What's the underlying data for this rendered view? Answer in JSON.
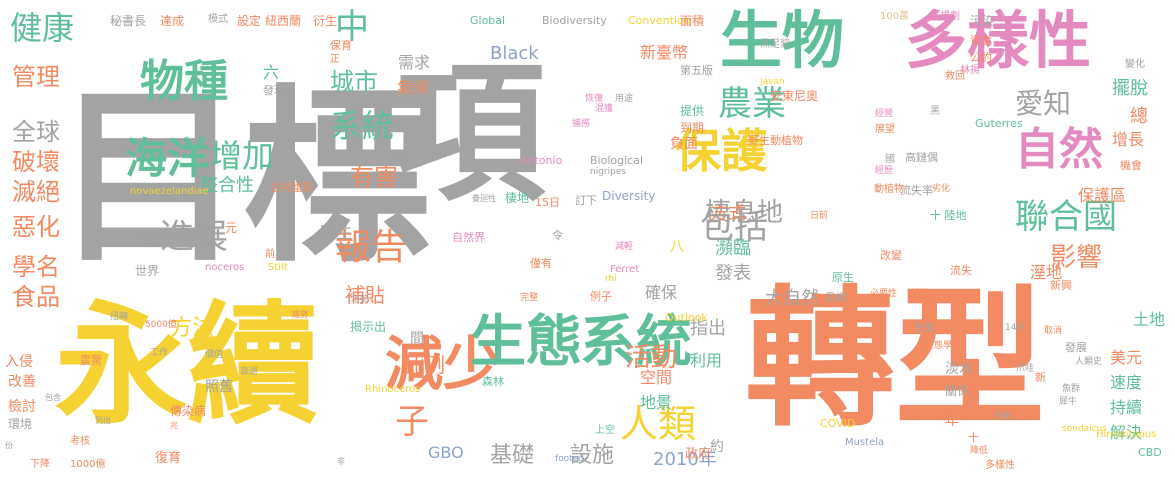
{
  "palette": {
    "gray": "#a3a3a3",
    "orange": "#f28a62",
    "green": "#5fbf9b",
    "pink": "#e58ac0",
    "yellow": "#f5d232",
    "blue": "#8ea3cc",
    "lime": "#a8d448",
    "tan": "#e3c28c"
  },
  "words": [
    {
      "text": "目標",
      "color": "gray",
      "size": 188
    },
    {
      "text": "項",
      "color": "gray",
      "size": 150
    },
    {
      "text": "轉型",
      "color": "orange",
      "size": 150
    },
    {
      "text": "永續",
      "color": "yellow",
      "size": 132
    },
    {
      "text": "多樣性",
      "color": "pink",
      "size": 62
    },
    {
      "text": "生物",
      "color": "green",
      "size": 62
    },
    {
      "text": "減少",
      "color": "orange",
      "size": 58
    },
    {
      "text": "生態",
      "color": "green",
      "size": 56
    },
    {
      "text": "系統",
      "color": "green",
      "size": 56
    },
    {
      "text": "物種",
      "color": "green",
      "size": 44
    },
    {
      "text": "海洋",
      "color": "green",
      "size": 42
    },
    {
      "text": "保護",
      "color": "yellow",
      "size": 46
    },
    {
      "text": "自然",
      "color": "pink",
      "size": 44
    },
    {
      "text": "報告",
      "color": "orange",
      "size": 36
    },
    {
      "text": "人類",
      "color": "yellow",
      "size": 38
    },
    {
      "text": "增加",
      "color": "green",
      "size": 32
    },
    {
      "text": "進展",
      "color": "gray",
      "size": 34
    },
    {
      "text": "聯合國",
      "color": "green",
      "size": 34
    },
    {
      "text": "農業",
      "color": "green",
      "size": 34
    },
    {
      "text": "系統",
      "color": "green",
      "size": 32
    },
    {
      "text": "包括",
      "color": "gray",
      "size": 34
    },
    {
      "text": "健康",
      "color": "green",
      "size": 32
    },
    {
      "text": "中",
      "color": "green",
      "size": 34
    },
    {
      "text": "子",
      "color": "orange",
      "size": 34
    },
    {
      "text": "愛知",
      "color": "gray",
      "size": 28
    },
    {
      "text": "影響",
      "color": "orange",
      "size": 26
    },
    {
      "text": "活動",
      "color": "orange",
      "size": 26
    },
    {
      "text": "棲息地",
      "color": "gray",
      "size": 26
    },
    {
      "text": "有害",
      "color": "orange",
      "size": 24
    },
    {
      "text": "城市",
      "color": "green",
      "size": 24
    },
    {
      "text": "管理",
      "color": "orange",
      "size": 24
    },
    {
      "text": "全球",
      "color": "gray",
      "size": 24
    },
    {
      "text": "破壞",
      "color": "orange",
      "size": 24
    },
    {
      "text": "滅絕",
      "color": "orange",
      "size": 24
    },
    {
      "text": "惡化",
      "color": "orange",
      "size": 24
    },
    {
      "text": "學名",
      "color": "orange",
      "size": 24
    },
    {
      "text": "食品",
      "color": "orange",
      "size": 24
    },
    {
      "text": "基礎",
      "color": "gray",
      "size": 22
    },
    {
      "text": "設施",
      "color": "gray",
      "size": 22
    },
    {
      "text": "2010年",
      "color": "blue",
      "size": 18
    },
    {
      "text": "方法",
      "color": "yellow",
      "size": 22
    },
    {
      "text": "補貼",
      "color": "orange",
      "size": 20
    },
    {
      "text": "比例",
      "color": "orange",
      "size": 20
    },
    {
      "text": "大自然",
      "color": "gray",
      "size": 18
    },
    {
      "text": "發表",
      "color": "gray",
      "size": 18
    },
    {
      "text": "瀕臨",
      "color": "green",
      "size": 18
    },
    {
      "text": "方式",
      "color": "orange",
      "size": 18
    },
    {
      "text": "整合性",
      "color": "green",
      "size": 18
    },
    {
      "text": "指出",
      "color": "gray",
      "size": 18
    },
    {
      "text": "利用",
      "color": "green",
      "size": 16
    },
    {
      "text": "空間",
      "color": "orange",
      "size": 16
    },
    {
      "text": "地景",
      "color": "green",
      "size": 16
    },
    {
      "text": "確保",
      "color": "gray",
      "size": 16
    },
    {
      "text": "保護區",
      "color": "orange",
      "size": 16
    },
    {
      "text": "溼地",
      "color": "orange",
      "size": 16
    },
    {
      "text": "擺脫",
      "color": "green",
      "size": 18
    },
    {
      "text": "增長",
      "color": "orange",
      "size": 16
    },
    {
      "text": "總",
      "color": "orange",
      "size": 18
    },
    {
      "text": "美元",
      "color": "orange",
      "size": 16
    },
    {
      "text": "速度",
      "color": "green",
      "size": 16
    },
    {
      "text": "持續",
      "color": "green",
      "size": 16
    },
    {
      "text": "解決",
      "color": "green",
      "size": 16
    },
    {
      "text": "土地",
      "color": "green",
      "size": 16
    },
    {
      "text": "野生",
      "color": "gray",
      "size": 16
    },
    {
      "text": "消費",
      "color": "gray",
      "size": 13
    },
    {
      "text": "世界",
      "color": "gray",
      "size": 12
    },
    {
      "text": "Black",
      "color": "blue",
      "size": 18
    },
    {
      "text": "GBO",
      "color": "blue",
      "size": 16
    },
    {
      "text": "Global",
      "color": "green",
      "size": 11
    },
    {
      "text": "Biodiversity",
      "color": "gray",
      "size": 11
    },
    {
      "text": "Convention",
      "color": "yellow",
      "size": 11
    },
    {
      "text": "Biological",
      "color": "gray",
      "size": 11
    },
    {
      "text": "Diversity",
      "color": "blue",
      "size": 12
    },
    {
      "text": "Antonio",
      "color": "pink",
      "size": 11
    },
    {
      "text": "Guterres",
      "color": "green",
      "size": 11
    },
    {
      "text": "Outlook",
      "color": "yellow",
      "size": 11
    },
    {
      "text": "Rhinoceros",
      "color": "yellow",
      "size": 10
    },
    {
      "text": "novaezelandiae",
      "color": "yellow",
      "size": 10
    },
    {
      "text": "noceros",
      "color": "pink",
      "size": 10
    },
    {
      "text": "Stilt",
      "color": "yellow",
      "size": 10
    },
    {
      "text": "Himantopus",
      "color": "yellow",
      "size": 10
    },
    {
      "text": "Mustela",
      "color": "blue",
      "size": 10
    },
    {
      "text": "COVID",
      "color": "yellow",
      "size": 11
    },
    {
      "text": "CBD",
      "color": "green",
      "size": 11
    },
    {
      "text": "Ferret",
      "color": "pink",
      "size": 10
    },
    {
      "text": "Javan",
      "color": "yellow",
      "size": 9
    },
    {
      "text": "sondaicus",
      "color": "yellow",
      "size": 9
    },
    {
      "text": "footed",
      "color": "blue",
      "size": 9
    },
    {
      "text": "rhi",
      "color": "yellow",
      "size": 9
    },
    {
      "text": "nigripes",
      "color": "gray",
      "size": 9
    },
    {
      "text": "秘書長",
      "color": "gray",
      "size": 12
    },
    {
      "text": "達成",
      "color": "orange",
      "size": 12
    },
    {
      "text": "模式",
      "color": "gray",
      "size": 10
    },
    {
      "text": "設定",
      "color": "orange",
      "size": 12
    },
    {
      "text": "紐西蘭",
      "color": "orange",
      "size": 12
    },
    {
      "text": "衍生",
      "color": "orange",
      "size": 12
    },
    {
      "text": "面積",
      "color": "orange",
      "size": 12
    },
    {
      "text": "100萬",
      "color": "tan",
      "size": 10
    },
    {
      "text": "規劃",
      "color": "pink",
      "size": 10
    },
    {
      "text": "污染",
      "color": "gray",
      "size": 12
    },
    {
      "text": "資金",
      "color": "orange",
      "size": 11
    },
    {
      "text": "公約",
      "color": "orange",
      "size": 11
    },
    {
      "text": "林揚",
      "color": "pink",
      "size": 10
    },
    {
      "text": "保育",
      "color": "orange",
      "size": 11
    },
    {
      "text": "正",
      "color": "orange",
      "size": 10
    },
    {
      "text": "需求",
      "color": "gray",
      "size": 16
    },
    {
      "text": "氣候",
      "color": "orange",
      "size": 16
    },
    {
      "text": "六",
      "color": "green",
      "size": 16
    },
    {
      "text": "發現",
      "color": "gray",
      "size": 11
    },
    {
      "text": "新臺幣",
      "color": "orange",
      "size": 16
    },
    {
      "text": "第五版",
      "color": "gray",
      "size": 11
    },
    {
      "text": "黑足貂",
      "color": "gray",
      "size": 10
    },
    {
      "text": "變化",
      "color": "gray",
      "size": 10
    },
    {
      "text": "救回",
      "color": "orange",
      "size": 10
    },
    {
      "text": "安東尼奧",
      "color": "orange",
      "size": 12
    },
    {
      "text": "提供",
      "color": "green",
      "size": 12
    },
    {
      "text": "到期",
      "color": "orange",
      "size": 12
    },
    {
      "text": "負面",
      "color": "orange",
      "size": 14
    },
    {
      "text": "野生動植物",
      "color": "orange",
      "size": 11
    },
    {
      "text": "黑",
      "color": "gray",
      "size": 10
    },
    {
      "text": "經營",
      "color": "pink",
      "size": 9
    },
    {
      "text": "國",
      "color": "gray",
      "size": 10
    },
    {
      "text": "展望",
      "color": "orange",
      "size": 10
    },
    {
      "text": "經歷",
      "color": "pink",
      "size": 9
    },
    {
      "text": "高鏈偶",
      "color": "gray",
      "size": 11
    },
    {
      "text": "流失率",
      "color": "gray",
      "size": 11
    },
    {
      "text": "十 陸地",
      "color": "green",
      "size": 11
    },
    {
      "text": "機會",
      "color": "orange",
      "size": 11
    },
    {
      "text": "動植物",
      "color": "orange",
      "size": 10
    },
    {
      "text": "劣化",
      "color": "orange",
      "size": 9
    },
    {
      "text": "恢復",
      "color": "pink",
      "size": 9
    },
    {
      "text": "混獲",
      "color": "pink",
      "size": 9
    },
    {
      "text": "用途",
      "color": "gray",
      "size": 9
    },
    {
      "text": "捕撈",
      "color": "pink",
      "size": 9
    },
    {
      "text": "古特雷斯",
      "color": "orange",
      "size": 11
    },
    {
      "text": "棲地",
      "color": "green",
      "size": 12
    },
    {
      "text": "15日",
      "color": "orange",
      "size": 11
    },
    {
      "text": "訂下",
      "color": "gray",
      "size": 11
    },
    {
      "text": "疊迴性",
      "color": "gray",
      "size": 8
    },
    {
      "text": "日前",
      "color": "orange",
      "size": 9
    },
    {
      "text": "元",
      "color": "orange",
      "size": 12
    },
    {
      "text": "令",
      "color": "gray",
      "size": 11
    },
    {
      "text": "自然界",
      "color": "pink",
      "size": 11
    },
    {
      "text": "減輕",
      "color": "pink",
      "size": 9
    },
    {
      "text": "僅有",
      "color": "orange",
      "size": 11
    },
    {
      "text": "八",
      "color": "yellow",
      "size": 14
    },
    {
      "text": "前",
      "color": "orange",
      "size": 10
    },
    {
      "text": "改變",
      "color": "orange",
      "size": 11
    },
    {
      "text": "流失",
      "color": "orange",
      "size": 11
    },
    {
      "text": "新興",
      "color": "orange",
      "size": 11
    },
    {
      "text": "根除",
      "color": "orange",
      "size": 10
    },
    {
      "text": "必要性",
      "color": "orange",
      "size": 9
    },
    {
      "text": "原生",
      "color": "green",
      "size": 11
    },
    {
      "text": "島嶼",
      "color": "gray",
      "size": 11
    },
    {
      "text": "北美",
      "color": "gray",
      "size": 9
    },
    {
      "text": "趨勢",
      "color": "orange",
      "size": 8
    },
    {
      "text": "扭轉",
      "color": "gray",
      "size": 9
    },
    {
      "text": "5000億",
      "color": "orange",
      "size": 9
    },
    {
      "text": "揭示出",
      "color": "green",
      "size": 12
    },
    {
      "text": "完整",
      "color": "orange",
      "size": 9
    },
    {
      "text": "例子",
      "color": "orange",
      "size": 11
    },
    {
      "text": "間",
      "color": "gray",
      "size": 14
    },
    {
      "text": "入侵",
      "color": "orange",
      "size": 14
    },
    {
      "text": "震驚",
      "color": "orange",
      "size": 11
    },
    {
      "text": "工作",
      "color": "gray",
      "size": 9
    },
    {
      "text": "價值",
      "color": "gray",
      "size": 9
    },
    {
      "text": "衰退",
      "color": "gray",
      "size": 9
    },
    {
      "text": "改善",
      "color": "orange",
      "size": 14
    },
    {
      "text": "照舊",
      "color": "gray",
      "size": 14
    },
    {
      "text": "檢討",
      "color": "orange",
      "size": 14
    },
    {
      "text": "傳染病",
      "color": "orange",
      "size": 12
    },
    {
      "text": "包含",
      "color": "gray",
      "size": 8
    },
    {
      "text": "列出",
      "color": "gray",
      "size": 8
    },
    {
      "text": "環境",
      "color": "gray",
      "size": 12
    },
    {
      "text": "兆",
      "color": "orange",
      "size": 8
    },
    {
      "text": "森林",
      "color": "green",
      "size": 11
    },
    {
      "text": "上空",
      "color": "green",
      "size": 10
    },
    {
      "text": "考核",
      "color": "orange",
      "size": 10
    },
    {
      "text": "份",
      "color": "gray",
      "size": 8
    },
    {
      "text": "復育",
      "color": "orange",
      "size": 13
    },
    {
      "text": "下降",
      "color": "orange",
      "size": 10
    },
    {
      "text": "1000億",
      "color": "orange",
      "size": 10
    },
    {
      "text": "非",
      "color": "gray",
      "size": 8
    },
    {
      "text": "淡水",
      "color": "gray",
      "size": 14
    },
    {
      "text": "政府",
      "color": "orange",
      "size": 13
    },
    {
      "text": "年",
      "color": "orange",
      "size": 14
    },
    {
      "text": "約",
      "color": "gray",
      "size": 14
    },
    {
      "text": "關係",
      "color": "gray",
      "size": 12
    },
    {
      "text": "生態",
      "color": "gray",
      "size": 10
    },
    {
      "text": "14兆",
      "color": "gray",
      "size": 9
    },
    {
      "text": "新",
      "color": "orange",
      "size": 11
    },
    {
      "text": "取消",
      "color": "orange",
      "size": 9
    },
    {
      "text": "爪哇",
      "color": "gray",
      "size": 9
    },
    {
      "text": "人類史",
      "color": "gray",
      "size": 9
    },
    {
      "text": "魚群",
      "color": "gray",
      "size": 9
    },
    {
      "text": "犀牛",
      "color": "gray",
      "size": 9
    },
    {
      "text": "依賴",
      "color": "gray",
      "size": 8
    },
    {
      "text": "降低",
      "color": "orange",
      "size": 9
    },
    {
      "text": "多樣性",
      "color": "orange",
      "size": 10
    },
    {
      "text": "發展",
      "color": "gray",
      "size": 11
    },
    {
      "text": "生態學",
      "color": "orange",
      "size": 9
    },
    {
      "text": "十",
      "color": "orange",
      "size": 11
    }
  ]
}
